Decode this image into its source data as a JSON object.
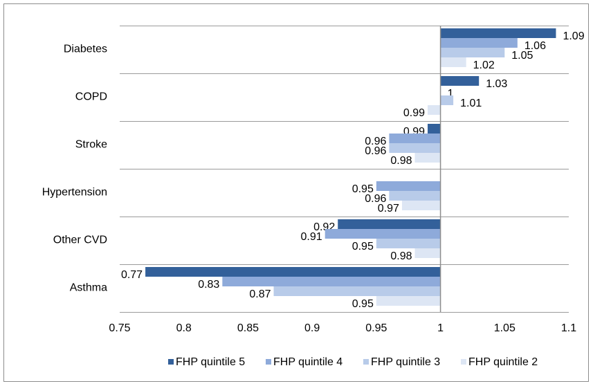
{
  "chart_data": {
    "type": "hbar",
    "categories": [
      "Diabetes",
      "COPD",
      "Stroke",
      "Hypertension",
      "Other CVD",
      "Asthma"
    ],
    "base": 1,
    "series": [
      {
        "name": "FHP quintile 5",
        "color": "#33609a",
        "values": [
          1.09,
          1.03,
          0.99,
          null,
          0.92,
          0.77
        ]
      },
      {
        "name": "FHP quintile 4",
        "color": "#8eaada",
        "values": [
          1.06,
          1,
          0.96,
          0.95,
          0.91,
          0.83
        ]
      },
      {
        "name": "FHP quintile 3",
        "color": "#b8cbe9",
        "values": [
          1.05,
          1.01,
          0.96,
          0.96,
          0.95,
          0.87
        ]
      },
      {
        "name": "FHP quintile 2",
        "color": "#dde6f4",
        "values": [
          1.02,
          0.99,
          0.98,
          0.97,
          0.98,
          0.95
        ]
      }
    ],
    "xlim": [
      0.75,
      1.1
    ],
    "xticks": [
      0.75,
      0.8,
      0.85,
      0.9,
      0.95,
      1,
      1.05,
      1.1
    ],
    "legend": "bottom"
  }
}
